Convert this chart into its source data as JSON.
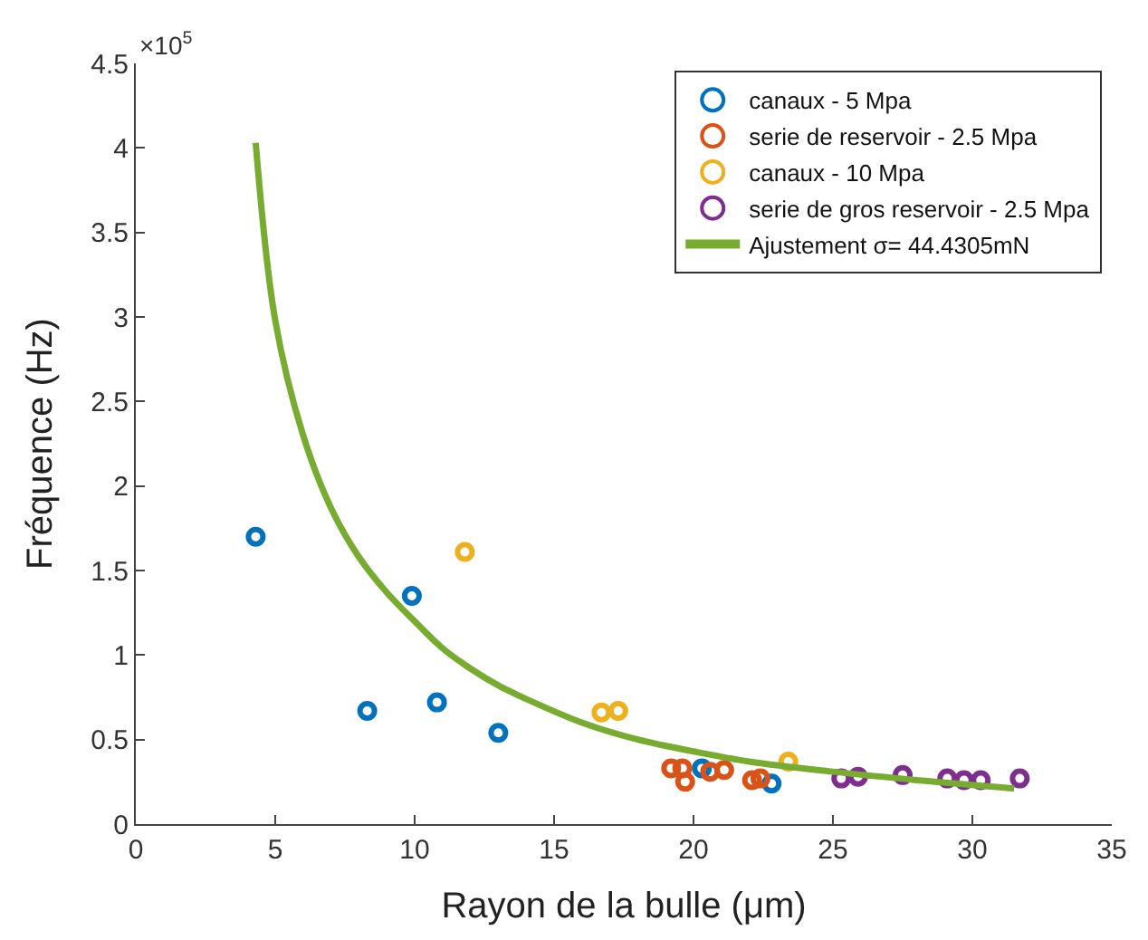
{
  "chart_data": {
    "type": "scatter",
    "xlabel": "Rayon de la bulle (μm)",
    "ylabel": "Fréquence (Hz)",
    "xlim": [
      0,
      35
    ],
    "xticks": [
      0,
      5,
      10,
      15,
      20,
      25,
      30,
      35
    ],
    "ylim": [
      0,
      4.5
    ],
    "yticks": [
      0,
      0.5,
      1,
      1.5,
      2,
      2.5,
      3,
      3.5,
      4,
      4.5
    ],
    "annotations": [
      "×10$^{5}$"
    ],
    "legend": "top right",
    "marker": "circle",
    "series": [
      {
        "name": "canaux - 5 Mpa",
        "color": "#0072bd",
        "x": [
          4.3,
          8.3,
          9.9,
          10.8,
          13.0,
          20.3,
          22.8
        ],
        "values": [
          1.7,
          0.67,
          1.35,
          0.72,
          0.54,
          0.33,
          0.24
        ]
      },
      {
        "name": "serie de reservoir - 2.5 Mpa",
        "color": "#d95319",
        "x": [
          19.2,
          19.6,
          19.7,
          20.6,
          21.1,
          22.1,
          22.4
        ],
        "values": [
          0.33,
          0.33,
          0.25,
          0.31,
          0.32,
          0.26,
          0.27
        ]
      },
      {
        "name": "canaux - 10 Mpa",
        "color": "#edb120",
        "x": [
          11.8,
          16.7,
          17.3,
          23.4
        ],
        "values": [
          1.61,
          0.66,
          0.67,
          0.37
        ]
      },
      {
        "name": "serie de gros reservoir - 2.5 Mpa",
        "color": "#7e2f8e",
        "x": [
          25.3,
          25.9,
          27.5,
          29.1,
          29.7,
          30.3,
          31.7
        ],
        "values": [
          0.27,
          0.28,
          0.29,
          0.27,
          0.26,
          0.26,
          0.27
        ]
      },
      {
        "name": "Ajustement σ= 44.4305mN",
        "type": "line",
        "color": "#77ac30",
        "marker": "none",
        "line_style": "solid",
        "x": [
          4.3,
          5,
          6,
          7,
          8,
          9,
          10,
          11,
          12,
          13,
          14,
          16,
          18,
          20,
          22,
          25,
          28,
          31.5
        ],
        "values": [
          4.03,
          2.98,
          2.3,
          1.87,
          1.58,
          1.37,
          1.2,
          1.04,
          0.92,
          0.82,
          0.74,
          0.6,
          0.5,
          0.43,
          0.37,
          0.31,
          0.26,
          0.21
        ]
      }
    ]
  }
}
